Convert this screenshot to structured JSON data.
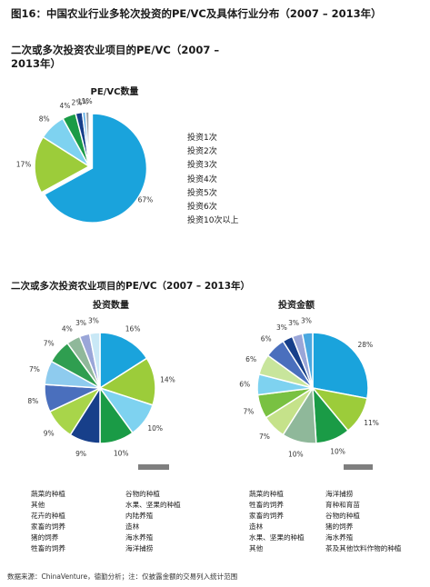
{
  "figure_title": "图16：中国农业行业多轮次投资的PE/VC及具体行业分布（2007 – 2013年）",
  "section1_title": "二次或多次投资农业项目的PE/VC（2007 – 2013年）",
  "section2_title": "二次或多次投资农业项目的PE/VC（2007 – 2013年）",
  "source": "数据来源：ChinaVenture，德勤分析；注：仅披露金额的交易列入统计范围",
  "colors": {
    "blue": "#1aa3dc",
    "light_green": "#9ccc3a",
    "light_blue": "#7ed2f0",
    "green": "#1a9b46",
    "navy": "#173f8a",
    "sky": "#6ab4e8",
    "gray": "#9aa0a6"
  },
  "chart_data": [
    {
      "type": "pie",
      "title": "PE/VC数量",
      "categories": [
        "投资1次",
        "投资2次",
        "投资3次",
        "投资4次",
        "投资5次",
        "投资6次",
        "投资10次以上"
      ],
      "values": [
        67,
        17,
        8,
        4,
        2,
        1,
        1
      ],
      "labels": [
        "67%",
        "17%",
        "8%",
        "4%",
        "2%",
        "1%",
        "1%"
      ],
      "colors": [
        "#1aa3dc",
        "#9ccc3a",
        "#7ed2f0",
        "#1a9b46",
        "#173f8a",
        "#6ab4e8",
        "#9aa0a6"
      ]
    },
    {
      "type": "pie",
      "title": "投资数量",
      "categories": [
        "蔬菜的种植",
        "谷物的种植",
        "其他",
        "水果、坚果的种植",
        "花卉的种植",
        "内陆养殖",
        "家畜的饲养",
        "造林",
        "猪的饲养",
        "海水养殖",
        "牲畜的饲养",
        "海洋捕捞"
      ],
      "values": [
        16,
        14,
        10,
        10,
        9,
        9,
        8,
        7,
        7,
        4,
        3,
        3
      ],
      "labels": [
        "16%",
        "14%",
        "10%",
        "10%",
        "9%",
        "9%",
        "8%",
        "7%",
        "7%",
        "4%",
        "3%",
        "3%"
      ],
      "colors": [
        "#1aa3dc",
        "#9ccc3a",
        "#7ed2f0",
        "#1a9b46",
        "#173f8a",
        "#a8d54a",
        "#4a6fbd",
        "#8ecbee",
        "#2f9e50",
        "#8fb89a",
        "#9aa6d8",
        "#c9e8f6"
      ]
    },
    {
      "type": "pie",
      "title": "投资金额",
      "categories": [
        "蔬菜的种植",
        "海洋捕捞",
        "牲畜的饲养",
        "育种和育苗",
        "家畜的饲养",
        "谷物的种植",
        "造林",
        "猪的饲养",
        "水果、坚果的种植",
        "海水养殖",
        "其他",
        "茶及其他饮料作物的种植"
      ],
      "values": [
        28,
        11,
        10,
        10,
        7,
        7,
        6,
        6,
        6,
        3,
        3,
        3
      ],
      "labels": [
        "28%",
        "11%",
        "10%",
        "10%",
        "7%",
        "7%",
        "6%",
        "6%",
        "6%",
        "3%",
        "3%",
        "3%"
      ],
      "colors": [
        "#1aa3dc",
        "#9ccc3a",
        "#1a9b46",
        "#8fb89a",
        "#c5e28a",
        "#79c142",
        "#7ed2f0",
        "#c8e59c",
        "#4a6fbd",
        "#173f8a",
        "#9aa6d8",
        "#4aa8e0"
      ]
    }
  ],
  "legend2_left": [
    "蔬菜的种植",
    "其他",
    "花卉的种植",
    "家畜的饲养",
    "猪的饲养",
    "牲畜的饲养"
  ],
  "legend2_right": [
    "谷物的种植",
    "水果、坚果的种植",
    "内陆养殖",
    "造林",
    "海水养殖",
    "海洋捕捞"
  ],
  "legend3_left": [
    "蔬菜的种植",
    "牲畜的饲养",
    "家畜的饲养",
    "造林",
    "水果、坚果的种植",
    "其他"
  ],
  "legend3_right": [
    "海洋捕捞",
    "育种和育苗",
    "谷物的种植",
    "猪的饲养",
    "海水养殖",
    "茶及其他饮料作物的种植"
  ]
}
